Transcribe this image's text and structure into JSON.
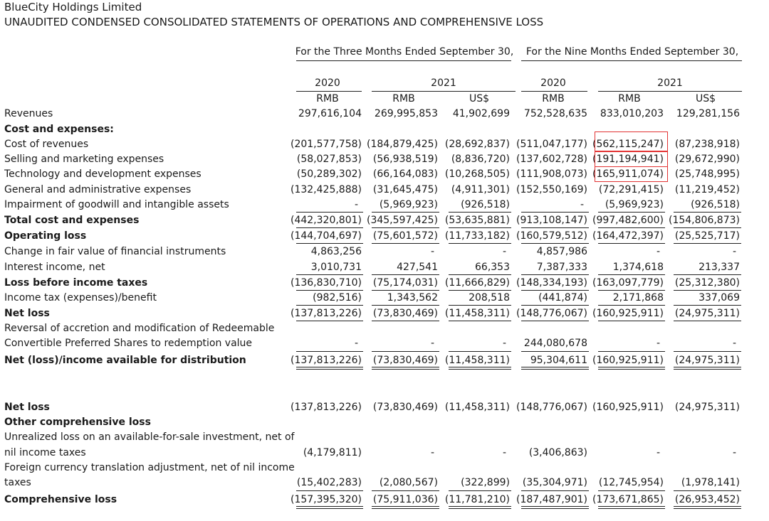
{
  "company": "BlueCity Holdings Limited",
  "statement_title": "UNAUDITED CONDENSED CONSOLIDATED STATEMENTS OF OPERATIONS AND COMPREHENSIVE LOSS",
  "period_headers": [
    "For the Three Months Ended September 30,",
    "For the Nine Months Ended September 30,"
  ],
  "year_headers": [
    "2020",
    "2021",
    "2020",
    "2021"
  ],
  "currency_headers": [
    "RMB",
    "RMB",
    "US$",
    "RMB",
    "RMB",
    "US$"
  ],
  "rows": [
    {
      "label": "Revenues",
      "bold": false,
      "values": [
        "297,616,104",
        "269,995,853",
        "41,902,699",
        "752,528,635",
        "833,010,203",
        "129,281,156"
      ]
    },
    {
      "label": "Cost and expenses:",
      "bold": true,
      "values": [
        "",
        "",
        "",
        "",
        "",
        ""
      ]
    },
    {
      "label": "Cost of revenues",
      "bold": false,
      "values": [
        "(201,577,758)",
        "(184,879,425)",
        "(28,692,837)",
        "(511,047,177)",
        "(562,115,247)",
        "(87,238,918)"
      ]
    },
    {
      "label": "Selling and marketing expenses",
      "bold": false,
      "values": [
        "(58,027,853)",
        "(56,938,519)",
        "(8,836,720)",
        "(137,602,728)",
        "(191,194,941)",
        "(29,672,990)"
      ]
    },
    {
      "label": "Technology and development expenses",
      "bold": false,
      "values": [
        "(50,289,302)",
        "(66,164,083)",
        "(10,268,505)",
        "(111,908,073)",
        "(165,911,074)",
        "(25,748,995)"
      ]
    },
    {
      "label": "General and administrative expenses",
      "bold": false,
      "values": [
        "(132,425,888)",
        "(31,645,475)",
        "(4,911,301)",
        "(152,550,169)",
        "(72,291,415)",
        "(11,219,452)"
      ]
    },
    {
      "label": "Impairment of goodwill and intangible assets",
      "bold": false,
      "values": [
        "-",
        "(5,969,923)",
        "(926,518)",
        "-",
        "(5,969,923)",
        "(926,518)"
      ]
    },
    {
      "label": "Total cost and expenses",
      "bold": true,
      "values": [
        "(442,320,801)",
        "(345,597,425)",
        "(53,635,881)",
        "(913,108,147)",
        "(997,482,600)",
        "(154,806,873)"
      ]
    },
    {
      "label": "Operating loss",
      "bold": true,
      "values": [
        "(144,704,697)",
        "(75,601,572)",
        "(11,733,182)",
        "(160,579,512)",
        "(164,472,397)",
        "(25,525,717)"
      ]
    },
    {
      "label": "Change in fair value of financial instruments",
      "bold": false,
      "values": [
        "4,863,256",
        "-",
        "-",
        "4,857,986",
        "-",
        "-"
      ]
    },
    {
      "label": "Interest income, net",
      "bold": false,
      "values": [
        "3,010,731",
        "427,541",
        "66,353",
        "7,387,333",
        "1,374,618",
        "213,337"
      ]
    },
    {
      "label": "Loss before income taxes",
      "bold": true,
      "values": [
        "(136,830,710)",
        "(75,174,031)",
        "(11,666,829)",
        "(148,334,193)",
        "(163,097,779)",
        "(25,312,380)"
      ]
    },
    {
      "label": "Income tax (expenses)/benefit",
      "bold": false,
      "values": [
        "(982,516)",
        "1,343,562",
        "208,518",
        "(441,874)",
        "2,171,868",
        "337,069"
      ]
    },
    {
      "label": "Net loss",
      "bold": true,
      "values": [
        "(137,813,226)",
        "(73,830,469)",
        "(11,458,311)",
        "(148,776,067)",
        "(160,925,911)",
        "(24,975,311)"
      ]
    },
    {
      "label": "Reversal of accretion and modification of Redeemable",
      "bold": false,
      "values": [
        "",
        "",
        "",
        "",
        "",
        ""
      ]
    },
    {
      "label": "Convertible Preferred Shares to redemption value",
      "bold": false,
      "values": [
        "-",
        "-",
        "-",
        "244,080,678",
        "-",
        "-"
      ]
    },
    {
      "label": "Net (loss)/income available for distribution",
      "bold": true,
      "values": [
        "(137,813,226)",
        "(73,830,469)",
        "(11,458,311)",
        "95,304,611",
        "(160,925,911)",
        "(24,975,311)"
      ]
    },
    {
      "label": "Net loss",
      "bold": true,
      "values": [
        "(137,813,226)",
        "(73,830,469)",
        "(11,458,311)",
        "(148,776,067)",
        "(160,925,911)",
        "(24,975,311)"
      ]
    },
    {
      "label": "Other comprehensive loss",
      "bold": true,
      "values": [
        "",
        "",
        "",
        "",
        "",
        ""
      ]
    },
    {
      "label": "Unrealized loss on an available-for-sale investment, net of",
      "bold": false,
      "values": [
        "",
        "",
        "",
        "",
        "",
        ""
      ]
    },
    {
      "label": "nil income taxes",
      "bold": false,
      "values": [
        "(4,179,811)",
        "-",
        "-",
        "(3,406,863)",
        "-",
        "-"
      ]
    },
    {
      "label": "Foreign currency translation adjustment, net of nil income",
      "bold": false,
      "values": [
        "",
        "",
        "",
        "",
        "",
        ""
      ]
    },
    {
      "label": "taxes",
      "bold": false,
      "values": [
        "(15,402,283)",
        "(2,080,567)",
        "(322,899)",
        "(35,304,971)",
        "(12,745,954)",
        "(1,978,141)"
      ]
    },
    {
      "label": "Comprehensive loss",
      "bold": true,
      "values": [
        "(157,395,320)",
        "(75,911,036)",
        "(11,781,210)",
        "(187,487,901)",
        "(173,671,865)",
        "(26,953,452)"
      ]
    }
  ]
}
